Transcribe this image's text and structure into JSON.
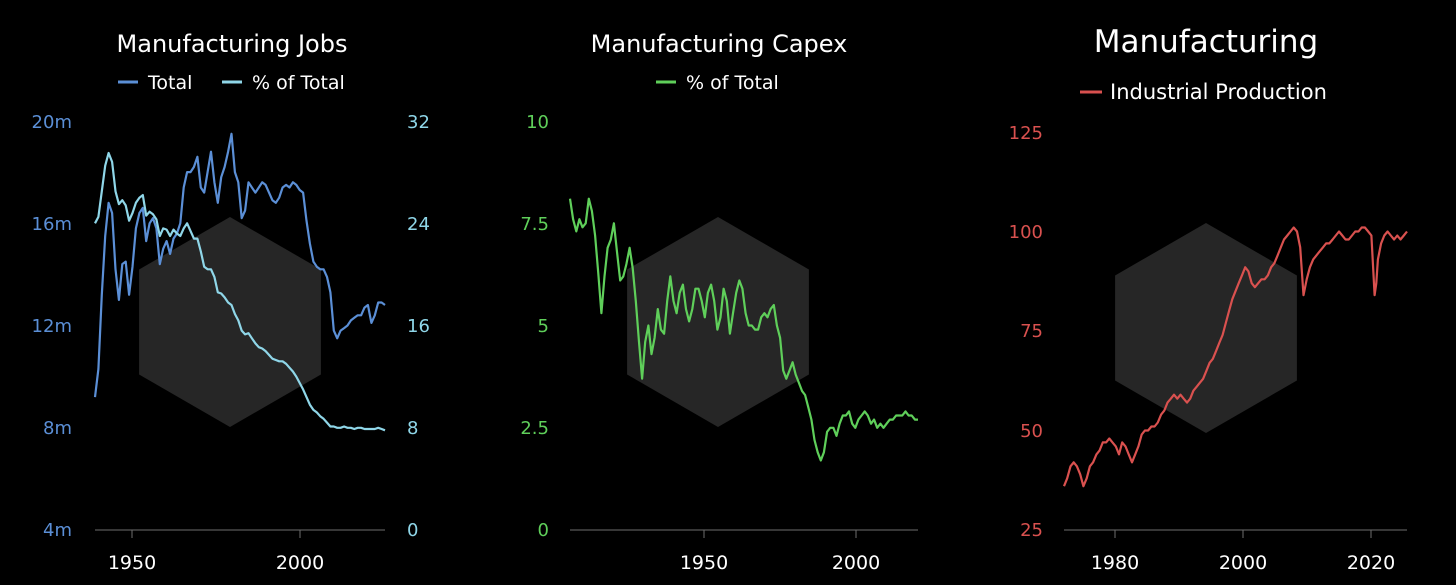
{
  "colors": {
    "jobs_total": "#5b8fd6",
    "jobs_pct": "#8fd6e8",
    "capex": "#5fcf5a",
    "ip": "#d9514f",
    "axis": "#6e6e6e",
    "watermark": "#2a2a2a"
  },
  "chart_data": [
    {
      "type": "line",
      "title": "Manufacturing Jobs",
      "xlabel": "",
      "x_ticks": [
        "1950",
        "2000"
      ],
      "xlim": [
        1939,
        2024
      ],
      "y_left": {
        "ticks": [
          "20m",
          "16m",
          "12m",
          "8m",
          "4m"
        ],
        "lim": [
          4,
          20
        ],
        "unit": "millions"
      },
      "y_right": {
        "ticks": [
          "32",
          "24",
          "16",
          "8",
          "0"
        ],
        "lim": [
          0,
          32
        ]
      },
      "legend_placement": "top-center",
      "series": [
        {
          "name": "Total",
          "axis": "left",
          "x": [
            1939,
            1940,
            1941,
            1942,
            1943,
            1944,
            1945,
            1946,
            1947,
            1948,
            1949,
            1950,
            1951,
            1952,
            1953,
            1954,
            1955,
            1956,
            1957,
            1958,
            1959,
            1960,
            1961,
            1962,
            1963,
            1964,
            1965,
            1966,
            1967,
            1968,
            1969,
            1970,
            1971,
            1972,
            1973,
            1974,
            1975,
            1976,
            1977,
            1978,
            1979,
            1980,
            1981,
            1982,
            1983,
            1984,
            1985,
            1986,
            1987,
            1988,
            1989,
            1990,
            1991,
            1992,
            1993,
            1994,
            1995,
            1996,
            1997,
            1998,
            1999,
            2000,
            2001,
            2002,
            2003,
            2004,
            2005,
            2006,
            2007,
            2008,
            2009,
            2010,
            2011,
            2012,
            2013,
            2014,
            2015,
            2016,
            2017,
            2018,
            2019,
            2020,
            2021,
            2022,
            2023,
            2024
          ],
          "values": [
            9.2,
            10.3,
            13.2,
            15.5,
            16.8,
            16.4,
            14.2,
            13.0,
            14.4,
            14.5,
            13.2,
            14.3,
            15.8,
            16.4,
            16.6,
            15.3,
            16.0,
            16.2,
            15.8,
            14.4,
            15.0,
            15.3,
            14.8,
            15.4,
            15.6,
            16.0,
            17.4,
            18.0,
            18.0,
            18.2,
            18.6,
            17.4,
            17.2,
            18.0,
            18.8,
            17.6,
            16.8,
            17.8,
            18.2,
            18.8,
            19.5,
            18.0,
            17.6,
            16.2,
            16.5,
            17.6,
            17.4,
            17.2,
            17.4,
            17.6,
            17.5,
            17.2,
            16.9,
            16.8,
            17.0,
            17.4,
            17.5,
            17.4,
            17.6,
            17.5,
            17.3,
            17.2,
            16.1,
            15.2,
            14.5,
            14.3,
            14.2,
            14.2,
            13.9,
            13.3,
            11.8,
            11.5,
            11.8,
            11.9,
            12.0,
            12.2,
            12.3,
            12.4,
            12.4,
            12.7,
            12.8,
            12.1,
            12.4,
            12.9,
            12.9,
            12.8
          ]
        },
        {
          "name": "% of Total",
          "axis": "right",
          "x": [
            1939,
            1940,
            1941,
            1942,
            1943,
            1944,
            1945,
            1946,
            1947,
            1948,
            1949,
            1950,
            1951,
            1952,
            1953,
            1954,
            1955,
            1956,
            1957,
            1958,
            1959,
            1960,
            1961,
            1962,
            1963,
            1964,
            1965,
            1966,
            1967,
            1968,
            1969,
            1970,
            1971,
            1972,
            1973,
            1974,
            1975,
            1976,
            1977,
            1978,
            1979,
            1980,
            1981,
            1982,
            1983,
            1984,
            1985,
            1986,
            1987,
            1988,
            1989,
            1990,
            1991,
            1992,
            1993,
            1994,
            1995,
            1996,
            1997,
            1998,
            1999,
            2000,
            2001,
            2002,
            2003,
            2004,
            2005,
            2006,
            2007,
            2008,
            2009,
            2010,
            2011,
            2012,
            2013,
            2014,
            2015,
            2016,
            2017,
            2018,
            2019,
            2020,
            2021,
            2022,
            2023,
            2024
          ],
          "values": [
            24.0,
            24.5,
            26.5,
            28.5,
            29.5,
            28.8,
            26.5,
            25.5,
            25.8,
            25.4,
            24.2,
            24.8,
            25.6,
            26.0,
            26.2,
            24.6,
            24.9,
            24.7,
            24.3,
            23.0,
            23.6,
            23.5,
            23.0,
            23.5,
            23.2,
            23.0,
            23.6,
            24.0,
            23.4,
            22.8,
            22.8,
            21.8,
            20.6,
            20.4,
            20.4,
            19.8,
            18.6,
            18.5,
            18.2,
            17.8,
            17.6,
            16.9,
            16.4,
            15.6,
            15.3,
            15.4,
            15.0,
            14.6,
            14.3,
            14.2,
            14.0,
            13.7,
            13.4,
            13.3,
            13.2,
            13.2,
            13.0,
            12.7,
            12.4,
            12.0,
            11.5,
            11.0,
            10.4,
            9.8,
            9.4,
            9.2,
            8.9,
            8.7,
            8.4,
            8.1,
            8.1,
            8.0,
            8.0,
            8.1,
            8.0,
            8.0,
            7.9,
            8.0,
            8.0,
            7.9,
            7.9,
            7.9,
            7.9,
            8.0,
            7.9,
            7.8
          ]
        }
      ]
    },
    {
      "type": "line",
      "title": "Manufacturing Capex",
      "xlabel": "",
      "x_ticks": [
        "1950",
        "2000"
      ],
      "xlim": [
        1911,
        2022
      ],
      "y_ticks": [
        "10",
        "7.5",
        "5",
        "2.5",
        "0"
      ],
      "ylim": [
        0,
        10
      ],
      "legend_placement": "top-center",
      "series": [
        {
          "name": "% of Total",
          "x": [
            1911,
            1912,
            1913,
            1914,
            1915,
            1916,
            1917,
            1918,
            1919,
            1920,
            1921,
            1922,
            1923,
            1924,
            1925,
            1926,
            1927,
            1928,
            1929,
            1930,
            1931,
            1932,
            1933,
            1934,
            1935,
            1936,
            1937,
            1938,
            1939,
            1940,
            1941,
            1942,
            1943,
            1944,
            1945,
            1946,
            1947,
            1948,
            1949,
            1950,
            1951,
            1952,
            1953,
            1954,
            1955,
            1956,
            1957,
            1958,
            1959,
            1960,
            1961,
            1962,
            1963,
            1964,
            1965,
            1966,
            1967,
            1968,
            1969,
            1970,
            1971,
            1972,
            1973,
            1974,
            1975,
            1976,
            1977,
            1978,
            1979,
            1980,
            1981,
            1982,
            1983,
            1984,
            1985,
            1986,
            1987,
            1988,
            1989,
            1990,
            1991,
            1992,
            1993,
            1994,
            1995,
            1996,
            1997,
            1998,
            1999,
            2000,
            2001,
            2002,
            2003,
            2004,
            2005,
            2006,
            2007,
            2008,
            2009,
            2010,
            2011,
            2012,
            2013,
            2014,
            2015,
            2016,
            2017,
            2018,
            2019,
            2020,
            2021,
            2022
          ],
          "values": [
            8.1,
            7.6,
            7.3,
            7.6,
            7.4,
            7.5,
            8.1,
            7.8,
            7.2,
            6.3,
            5.3,
            6.2,
            6.9,
            7.1,
            7.5,
            6.8,
            6.1,
            6.2,
            6.5,
            6.9,
            6.4,
            5.6,
            4.6,
            3.7,
            4.6,
            5.0,
            4.3,
            4.7,
            5.4,
            4.9,
            4.8,
            5.6,
            6.2,
            5.6,
            5.3,
            5.8,
            6.0,
            5.4,
            5.1,
            5.4,
            5.9,
            5.9,
            5.6,
            5.2,
            5.8,
            6.0,
            5.6,
            4.9,
            5.2,
            5.9,
            5.6,
            4.8,
            5.3,
            5.8,
            6.1,
            5.9,
            5.3,
            5.0,
            5.0,
            4.9,
            4.9,
            5.2,
            5.3,
            5.2,
            5.4,
            5.5,
            5.0,
            4.7,
            3.9,
            3.7,
            3.9,
            4.1,
            3.8,
            3.6,
            3.4,
            3.3,
            3.0,
            2.7,
            2.2,
            1.9,
            1.7,
            1.9,
            2.4,
            2.5,
            2.5,
            2.3,
            2.6,
            2.8,
            2.8,
            2.9,
            2.6,
            2.5,
            2.7,
            2.8,
            2.9,
            2.8,
            2.6,
            2.7,
            2.5,
            2.6,
            2.5,
            2.6,
            2.7,
            2.7,
            2.8,
            2.8,
            2.8,
            2.9,
            2.8,
            2.8,
            2.7,
            2.7
          ]
        }
      ]
    },
    {
      "type": "line",
      "title": "Manufacturing",
      "xlabel": "",
      "x_ticks": [
        "1980",
        "2000",
        "2020"
      ],
      "xlim": [
        1972,
        2025
      ],
      "y_ticks": [
        "125",
        "100",
        "75",
        "50",
        "25"
      ],
      "ylim": [
        25,
        125
      ],
      "legend_placement": "top-center",
      "series": [
        {
          "name": "Industrial Production",
          "x": [
            1972.0,
            1972.5,
            1973.0,
            1973.5,
            1974.0,
            1974.5,
            1975.0,
            1975.5,
            1976.0,
            1976.5,
            1977.0,
            1977.5,
            1978.0,
            1978.5,
            1979.0,
            1979.5,
            1980.0,
            1980.5,
            1981.0,
            1981.5,
            1982.0,
            1982.5,
            1983.0,
            1983.5,
            1984.0,
            1984.5,
            1985.0,
            1985.5,
            1986.0,
            1986.5,
            1987.0,
            1987.5,
            1988.0,
            1988.5,
            1989.0,
            1989.5,
            1990.0,
            1990.5,
            1991.0,
            1991.5,
            1992.0,
            1992.5,
            1993.0,
            1993.5,
            1994.0,
            1994.5,
            1995.0,
            1995.5,
            1996.0,
            1996.5,
            1997.0,
            1997.5,
            1998.0,
            1998.5,
            1999.0,
            1999.5,
            2000.0,
            2000.5,
            2001.0,
            2001.5,
            2002.0,
            2002.5,
            2003.0,
            2003.5,
            2004.0,
            2004.5,
            2005.0,
            2005.5,
            2006.0,
            2006.5,
            2007.0,
            2007.5,
            2008.0,
            2008.5,
            2009.0,
            2009.5,
            2010.0,
            2010.5,
            2011.0,
            2011.5,
            2012.0,
            2012.5,
            2013.0,
            2013.5,
            2014.0,
            2014.5,
            2015.0,
            2015.5,
            2016.0,
            2016.5,
            2017.0,
            2017.5,
            2018.0,
            2018.5,
            2019.0,
            2019.5,
            2020.0,
            2020.25,
            2020.5,
            2021.0,
            2021.5,
            2022.0,
            2022.5,
            2023.0,
            2023.5,
            2024.0,
            2024.5,
            2025.0
          ],
          "values": [
            36,
            38,
            41,
            42,
            41,
            39,
            36,
            38,
            41,
            42,
            44,
            45,
            47,
            47,
            48,
            47,
            46,
            44,
            47,
            46,
            44,
            42,
            44,
            46,
            49,
            50,
            50,
            51,
            51,
            52,
            54,
            55,
            57,
            58,
            59,
            58,
            59,
            58,
            57,
            58,
            60,
            61,
            62,
            63,
            65,
            67,
            68,
            70,
            72,
            74,
            77,
            80,
            83,
            85,
            87,
            89,
            91,
            90,
            87,
            86,
            87,
            88,
            88,
            89,
            91,
            92,
            94,
            96,
            98,
            99,
            100,
            101,
            100,
            96,
            84,
            88,
            91,
            93,
            94,
            95,
            96,
            97,
            97,
            98,
            99,
            100,
            99,
            98,
            98,
            99,
            100,
            100,
            101,
            101,
            100,
            99,
            84,
            87,
            93,
            97,
            99,
            100,
            99,
            98,
            99,
            98,
            99,
            100
          ]
        }
      ]
    }
  ]
}
